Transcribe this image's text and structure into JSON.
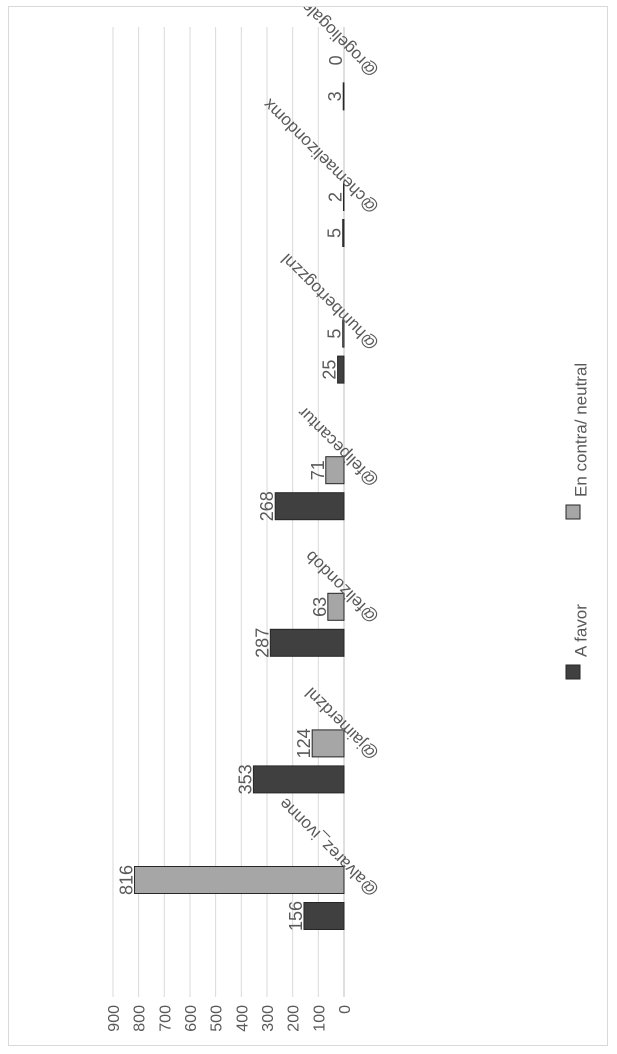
{
  "chart_data": {
    "type": "bar",
    "orientation": "rotated-90-clockwise",
    "title": "",
    "xlabel": "",
    "ylabel": "",
    "categories": [
      "@alvarez_ivonne",
      "@jaimerdznl",
      "@felizondob",
      "@felipecantur",
      "@humbertogzznl",
      "@chemaelizondomx",
      "@rogeliogalezrez"
    ],
    "series": [
      {
        "name": "A favor",
        "color": "#404040",
        "values": [
          156,
          353,
          287,
          268,
          25,
          5,
          3
        ]
      },
      {
        "name": "En contra/ neutral",
        "color": "#a6a6a6",
        "values": [
          816,
          124,
          63,
          71,
          5,
          2,
          0
        ]
      }
    ],
    "ylim": [
      0,
      900
    ],
    "yticks": [
      "0",
      "100",
      "200",
      "300",
      "400",
      "500",
      "600",
      "700",
      "800",
      "900"
    ],
    "grid": true,
    "legend_position": "bottom"
  }
}
